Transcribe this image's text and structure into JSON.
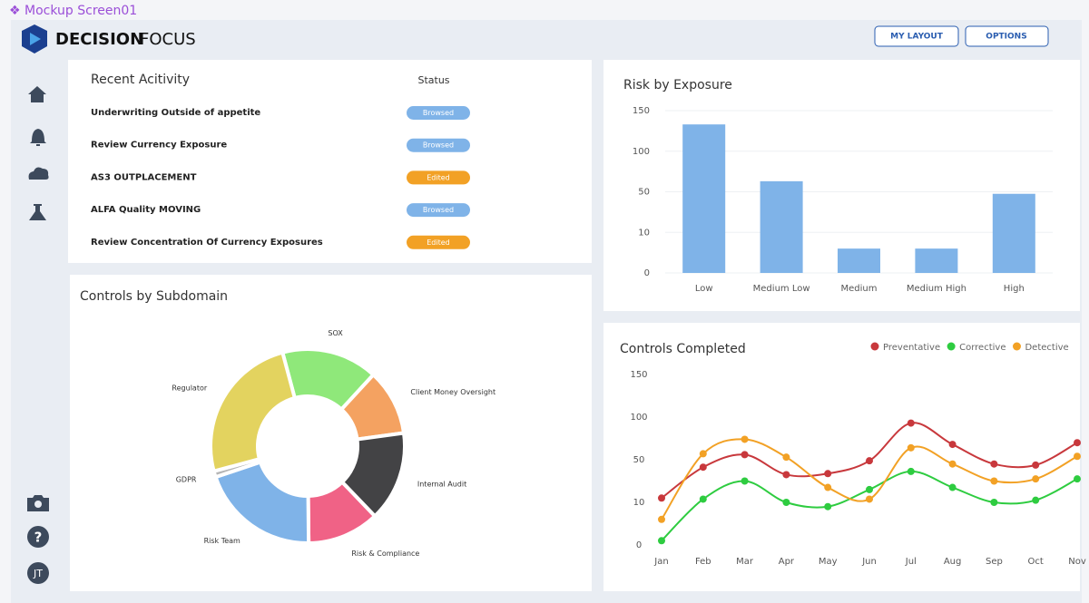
{
  "frame_label": "❖ Mockup Screen01",
  "brand": {
    "bold": "DECISION",
    "light": "FOCUS"
  },
  "buttons": [
    "MY LAYOUT",
    "OPTIONS"
  ],
  "user_initials": "JT",
  "activity": {
    "title": "Recent Acitivity",
    "status_header": "Status",
    "rows": [
      {
        "name": "Underwriting Outside of appetite",
        "status": "Browsed",
        "color": "#7fb3e8"
      },
      {
        "name": "Review Currency Exposure",
        "status": "Browsed",
        "color": "#7fb3e8"
      },
      {
        "name": "AS3 OUTPLACEMENT",
        "status": "Edited",
        "color": "#f2a125"
      },
      {
        "name": "ALFA Quality MOVING",
        "status": "Browsed",
        "color": "#7fb3e8"
      },
      {
        "name": "Review Concentration Of Currency Exposures",
        "status": "Edited",
        "color": "#f2a125"
      }
    ]
  },
  "chart_data": [
    {
      "type": "bar",
      "title": "Risk by Exposure",
      "categories": [
        "Low",
        "Medium Low",
        "Medium",
        "Medium High",
        "High"
      ],
      "values": [
        133,
        63,
        6,
        6,
        48
      ],
      "color": "#7fb3e8",
      "ylim": [
        0,
        150
      ],
      "yticks": [
        0,
        10,
        50,
        100,
        150
      ],
      "grid": true
    },
    {
      "type": "pie",
      "donut": true,
      "title": "Controls by Subdomain",
      "categories": [
        "SOX",
        "Client Money Oversight",
        "Internal Audit",
        "Risk & Compliance",
        "Risk Team",
        "GDPR",
        "Regulator"
      ],
      "values": [
        16,
        11,
        15,
        12,
        20,
        1,
        25
      ],
      "colors": [
        "#8fe87a",
        "#f4a261",
        "#434345",
        "#f06286",
        "#7fb3e8",
        "#b5b5b5",
        "#e3d35f"
      ]
    },
    {
      "type": "line",
      "title": "Controls Completed",
      "smooth": true,
      "legend": "top-right",
      "grid": false,
      "categories": [
        "Jan",
        "Feb",
        "Mar",
        "Apr",
        "May",
        "Jun",
        "Jul",
        "Aug",
        "Sep",
        "Oct",
        "Nov"
      ],
      "ylim": [
        0,
        150
      ],
      "yticks": [
        0,
        10,
        50,
        100,
        150
      ],
      "series": [
        {
          "name": "Preventative",
          "color": "#c8383c",
          "values": [
            14,
            43,
            56,
            36,
            37,
            49,
            93,
            68,
            46,
            45,
            70
          ]
        },
        {
          "name": "Corrective",
          "color": "#2ecc40",
          "values": [
            1,
            13,
            30,
            10,
            9,
            22,
            39,
            24,
            10,
            12,
            32
          ]
        },
        {
          "name": "Detective",
          "color": "#f2a125",
          "values": [
            6,
            57,
            74,
            53,
            24,
            13,
            64,
            46,
            30,
            32,
            54
          ]
        }
      ]
    }
  ]
}
